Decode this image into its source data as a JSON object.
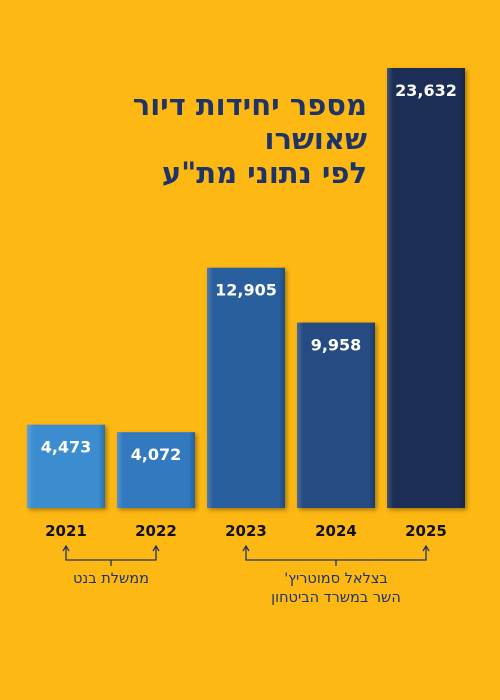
{
  "chart_data": {
    "type": "bar",
    "title": [
      "מספר יחידות דיור",
      "שאושרו",
      "לפי נתוני מת\"ע"
    ],
    "categories": [
      "2021",
      "2022",
      "2023",
      "2024",
      "2025"
    ],
    "values": [
      4473,
      4072,
      12905,
      9958,
      23632
    ],
    "value_labels": [
      "4,473",
      "4,072",
      "12,905",
      "9,958",
      "23,632"
    ],
    "bar_colors": [
      "#3A8DD0",
      "#3279C0",
      "#2B5E9E",
      "#254B83",
      "#1F2F55"
    ],
    "ylim": [
      0,
      23632
    ],
    "grid": false,
    "legend": "none",
    "groups": [
      {
        "lines": [
          "ממשלת בנט"
        ],
        "from": "2021",
        "to": "2022"
      },
      {
        "lines": [
          "בצלאל סמוטריץ'",
          "השר במשרד הביטחון"
        ],
        "from": "2023",
        "to": "2025"
      }
    ]
  }
}
